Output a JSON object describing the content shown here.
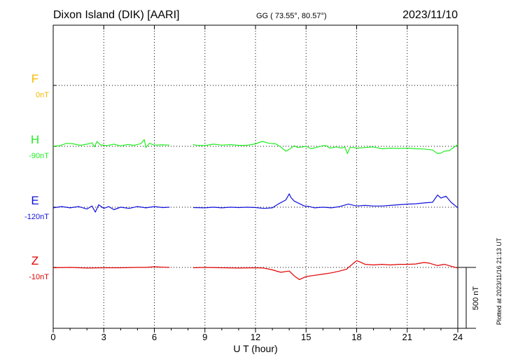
{
  "header": {
    "station": "Dixon Island (DIK)  [AARI]",
    "coords": "GG ( 73.55°,  80.57°)",
    "date": "2023/11/10"
  },
  "side_note": "Plotted at 2023/11/16 21:13 UT",
  "scale_bar": {
    "label": "500 nT",
    "value_nT": 500
  },
  "chart_data": {
    "type": "line",
    "xlabel": "U T (hour)",
    "xlim": [
      0,
      24
    ],
    "x_ticks": [
      "0",
      "3",
      "6",
      "9",
      "12",
      "15",
      "18",
      "21",
      "24"
    ],
    "nT_per_panel_unit": 500,
    "series": [
      {
        "name": "F",
        "baseline_label": "0nT",
        "color": "#f5b800",
        "points": []
      },
      {
        "name": "H",
        "baseline_label": "-90nT",
        "color": "#22ee22",
        "points": [
          [
            0,
            2
          ],
          [
            0.4,
            5
          ],
          [
            0.8,
            25
          ],
          [
            1.2,
            20
          ],
          [
            1.6,
            8
          ],
          [
            2,
            18
          ],
          [
            2.3,
            28
          ],
          [
            2.45,
            -5
          ],
          [
            2.6,
            40
          ],
          [
            2.8,
            12
          ],
          [
            3.2,
            5
          ],
          [
            3.6,
            18
          ],
          [
            4,
            3
          ],
          [
            4.4,
            15
          ],
          [
            4.8,
            8
          ],
          [
            5.2,
            22
          ],
          [
            5.4,
            55
          ],
          [
            5.5,
            -10
          ],
          [
            5.7,
            25
          ],
          [
            6,
            10
          ],
          [
            6.5,
            12
          ],
          [
            6.9,
            10
          ],
          [
            8.3,
            15
          ],
          [
            8.5,
            8
          ],
          [
            9,
            6
          ],
          [
            9.5,
            18
          ],
          [
            10,
            10
          ],
          [
            10.5,
            14
          ],
          [
            11,
            8
          ],
          [
            11.5,
            8
          ],
          [
            12,
            20
          ],
          [
            12.4,
            40
          ],
          [
            12.8,
            25
          ],
          [
            13.2,
            20
          ],
          [
            13.5,
            -5
          ],
          [
            13.8,
            -40
          ],
          [
            14,
            -25
          ],
          [
            14.3,
            5
          ],
          [
            14.5,
            -10
          ],
          [
            14.8,
            -5
          ],
          [
            15,
            0
          ],
          [
            15.3,
            -20
          ],
          [
            15.6,
            -10
          ],
          [
            16,
            5
          ],
          [
            16.2,
            5
          ],
          [
            16.4,
            -15
          ],
          [
            16.6,
            -10
          ],
          [
            16.8,
            -5
          ],
          [
            17.1,
            -15
          ],
          [
            17.3,
            -5
          ],
          [
            17.45,
            -60
          ],
          [
            17.6,
            -10
          ],
          [
            17.8,
            -10
          ],
          [
            18,
            -15
          ],
          [
            18.5,
            -10
          ],
          [
            19,
            -5
          ],
          [
            19.5,
            -20
          ],
          [
            20,
            -15
          ],
          [
            20.5,
            -18
          ],
          [
            21,
            -15
          ],
          [
            21.5,
            -20
          ],
          [
            22,
            -22
          ],
          [
            22.5,
            -30
          ],
          [
            22.8,
            -60
          ],
          [
            23,
            -55
          ],
          [
            23.2,
            -40
          ],
          [
            23.5,
            -35
          ],
          [
            23.7,
            -15
          ],
          [
            24,
            15
          ]
        ]
      },
      {
        "name": "E",
        "baseline_label": "-120nT",
        "color": "#1010dd",
        "points": [
          [
            0,
            -5
          ],
          [
            0.5,
            5
          ],
          [
            1,
            -5
          ],
          [
            1.5,
            5
          ],
          [
            2,
            -15
          ],
          [
            2.3,
            10
          ],
          [
            2.5,
            -40
          ],
          [
            2.7,
            20
          ],
          [
            3,
            -10
          ],
          [
            3.3,
            5
          ],
          [
            3.6,
            -20
          ],
          [
            4,
            0
          ],
          [
            4.5,
            -10
          ],
          [
            5,
            5
          ],
          [
            5.5,
            -5
          ],
          [
            6,
            5
          ],
          [
            6.5,
            -3
          ],
          [
            6.9,
            0
          ],
          [
            8.3,
            -3
          ],
          [
            9,
            -5
          ],
          [
            9.5,
            0
          ],
          [
            10,
            -5
          ],
          [
            10.5,
            0
          ],
          [
            11,
            -3
          ],
          [
            11.5,
            0
          ],
          [
            12,
            -3
          ],
          [
            12.5,
            -10
          ],
          [
            13,
            -5
          ],
          [
            13.4,
            30
          ],
          [
            13.8,
            60
          ],
          [
            14,
            110
          ],
          [
            14.1,
            80
          ],
          [
            14.3,
            50
          ],
          [
            14.6,
            30
          ],
          [
            14.9,
            10
          ],
          [
            15.2,
            5
          ],
          [
            15.5,
            -5
          ],
          [
            16,
            0
          ],
          [
            16.5,
            -5
          ],
          [
            17,
            5
          ],
          [
            17.5,
            25
          ],
          [
            18,
            10
          ],
          [
            18.5,
            15
          ],
          [
            19,
            10
          ],
          [
            19.5,
            10
          ],
          [
            20,
            15
          ],
          [
            20.5,
            20
          ],
          [
            21,
            25
          ],
          [
            21.5,
            28
          ],
          [
            22,
            35
          ],
          [
            22.5,
            40
          ],
          [
            22.8,
            100
          ],
          [
            23,
            75
          ],
          [
            23.3,
            90
          ],
          [
            23.6,
            40
          ],
          [
            24,
            -5
          ]
        ]
      },
      {
        "name": "Z",
        "baseline_label": "-10nT",
        "color": "#e00000",
        "points": [
          [
            0,
            -3
          ],
          [
            1,
            0
          ],
          [
            2,
            -5
          ],
          [
            3,
            -3
          ],
          [
            4,
            -3
          ],
          [
            5,
            0
          ],
          [
            5.5,
            0
          ],
          [
            6,
            5
          ],
          [
            6.5,
            2
          ],
          [
            6.9,
            0
          ],
          [
            8.3,
            -3
          ],
          [
            9,
            0
          ],
          [
            10,
            -3
          ],
          [
            11,
            -5
          ],
          [
            12,
            -3
          ],
          [
            12.5,
            -5
          ],
          [
            13,
            -20
          ],
          [
            13.5,
            -40
          ],
          [
            14,
            -30
          ],
          [
            14.3,
            -70
          ],
          [
            14.6,
            -100
          ],
          [
            15,
            -75
          ],
          [
            15.5,
            -65
          ],
          [
            16,
            -55
          ],
          [
            16.5,
            -45
          ],
          [
            17,
            -30
          ],
          [
            17.4,
            -15
          ],
          [
            17.6,
            10
          ],
          [
            18,
            55
          ],
          [
            18.2,
            45
          ],
          [
            18.5,
            25
          ],
          [
            19,
            20
          ],
          [
            19.5,
            25
          ],
          [
            20,
            20
          ],
          [
            20.5,
            25
          ],
          [
            21,
            25
          ],
          [
            21.5,
            28
          ],
          [
            22,
            40
          ],
          [
            22.3,
            35
          ],
          [
            22.8,
            15
          ],
          [
            23.2,
            25
          ],
          [
            23.6,
            10
          ],
          [
            24,
            -5
          ]
        ]
      }
    ]
  }
}
